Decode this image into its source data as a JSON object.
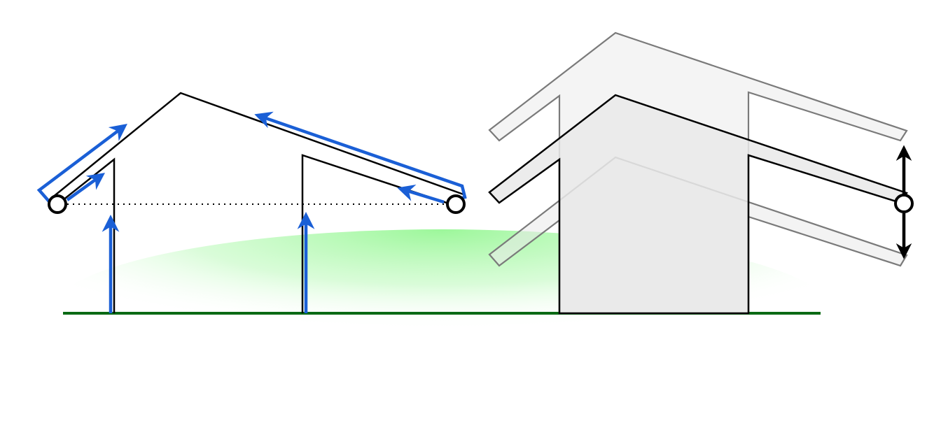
{
  "colors": {
    "background": "#ffffff",
    "outline": "#000000",
    "flow_arrow": "#1a5fd6",
    "ground_line": "#0a6a14",
    "ground_glow": "#9cf79a",
    "structure_fill": "#e9e9e9",
    "ghost_fill": "#f3f3f3",
    "ghost_stroke": "#7a7a7a",
    "node_fill": "#ffffff"
  },
  "icons": {
    "endpoint": "open-circle",
    "displacement": "double-headed-vertical-arrow",
    "flow": "arrow-head"
  },
  "labels": []
}
